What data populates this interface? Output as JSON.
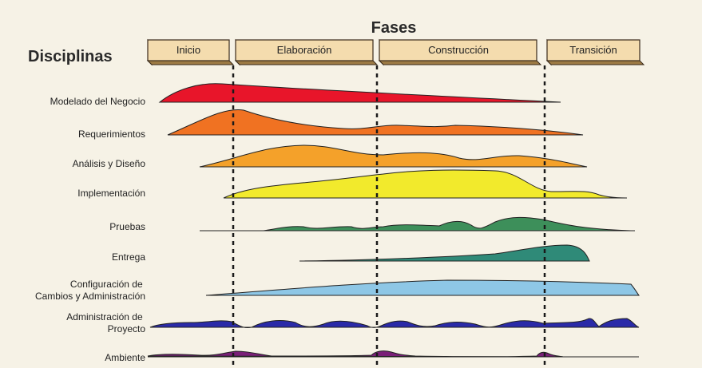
{
  "fases_heading": "Fases",
  "disciplinas_heading": "Disciplinas",
  "phases": [
    {
      "label": "Inicio"
    },
    {
      "label": "Elaboración"
    },
    {
      "label": "Construcción"
    },
    {
      "label": "Transición"
    }
  ],
  "disciplines": [
    {
      "label": [
        "Modelado del Negocio"
      ],
      "color": "#e8152a"
    },
    {
      "label": [
        "Requerimientos"
      ],
      "color": "#f07222"
    },
    {
      "label": [
        "Análisis y Diseño"
      ],
      "color": "#f4a12a"
    },
    {
      "label": [
        "Implementación"
      ],
      "color": "#f2ea2c"
    },
    {
      "label": [
        "Pruebas"
      ],
      "color": "#3d8f5a"
    },
    {
      "label": [
        "Entrega"
      ],
      "color": "#2f8a78"
    },
    {
      "label": [
        "Configuración de",
        "Cambios y Administración"
      ],
      "color": "#8ec7e6"
    },
    {
      "label": [
        "Administración de",
        "Proyecto"
      ],
      "color": "#2a2aa8"
    },
    {
      "label": [
        "Ambiente"
      ],
      "color": "#7a1f78"
    }
  ],
  "colors": {
    "background": "#f6f2e6",
    "phase_box_fill": "#f4dcae",
    "phase_box_stroke": "#3a2a1a",
    "divider": "#1a1a1a",
    "text": "#222222"
  }
}
